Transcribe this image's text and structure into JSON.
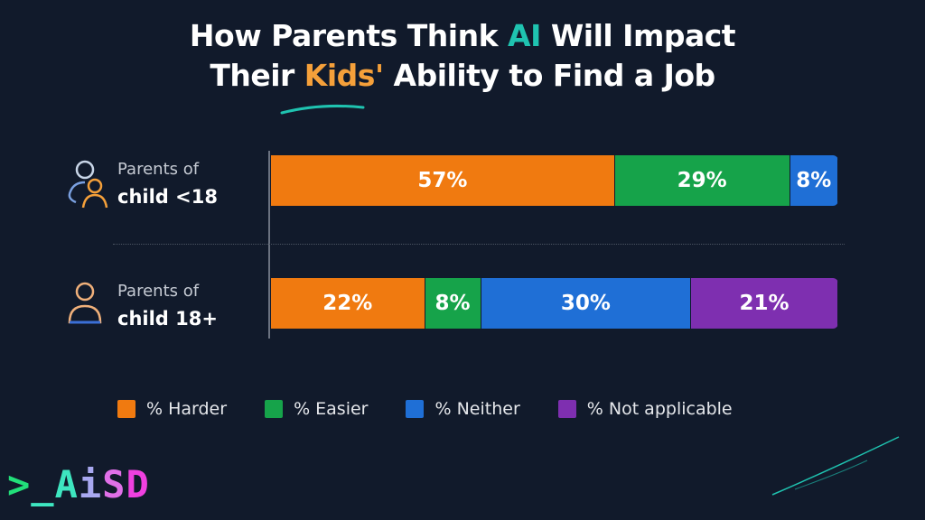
{
  "title": {
    "line1_pre": "How Parents Think ",
    "line1_hl": "AI",
    "line1_post": " Will Impact",
    "line2_pre": "Their ",
    "line2_hl": "Kids'",
    "line2_post": " Ability to Find a Job"
  },
  "chart_data": {
    "type": "bar",
    "orientation": "horizontal",
    "stacked": true,
    "categories": [
      "Parents of child <18",
      "Parents of child 18+"
    ],
    "category_lines": [
      [
        "Parents of",
        "child <18"
      ],
      [
        "Parents of",
        "child 18+"
      ]
    ],
    "series": [
      {
        "name": "% Harder",
        "color": "#f07a10",
        "values": [
          57,
          22
        ]
      },
      {
        "name": "% Easier",
        "color": "#16a34a",
        "values": [
          29,
          8
        ]
      },
      {
        "name": "% Neither",
        "color": "#1f6fd6",
        "values": [
          8,
          30
        ]
      },
      {
        "name": "% Not applicable",
        "color": "#7e2fb0",
        "values": [
          null,
          21
        ]
      }
    ],
    "data_label_suffix": "%",
    "legend": "bottom",
    "grid": false
  },
  "logo": {
    "text": ">_AiSD"
  }
}
